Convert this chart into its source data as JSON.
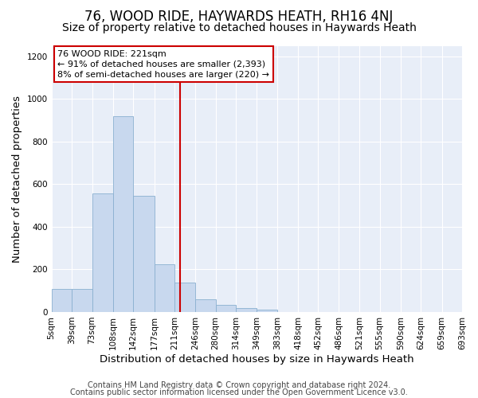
{
  "title": "76, WOOD RIDE, HAYWARDS HEATH, RH16 4NJ",
  "subtitle": "Size of property relative to detached houses in Haywards Heath",
  "xlabel": "Distribution of detached houses by size in Haywards Heath",
  "ylabel": "Number of detached properties",
  "bar_edges": [
    5,
    39,
    73,
    108,
    142,
    177,
    211,
    246,
    280,
    314,
    349,
    383,
    418,
    452,
    486,
    521,
    555,
    590,
    624,
    659,
    693
  ],
  "bar_heights": [
    110,
    110,
    557,
    920,
    545,
    225,
    137,
    60,
    35,
    20,
    10,
    0,
    0,
    0,
    0,
    0,
    0,
    0,
    0,
    0
  ],
  "bar_color": "#c8d8ee",
  "bar_edge_color": "#8ab0d0",
  "property_value": 221,
  "vline_color": "#cc0000",
  "annotation_text": "76 WOOD RIDE: 221sqm\n← 91% of detached houses are smaller (2,393)\n8% of semi-detached houses are larger (220) →",
  "annotation_box_color": "#ffffff",
  "annotation_box_edge": "#cc0000",
  "ylim": [
    0,
    1250
  ],
  "yticks": [
    0,
    200,
    400,
    600,
    800,
    1000,
    1200
  ],
  "tick_labels": [
    "5sqm",
    "39sqm",
    "73sqm",
    "108sqm",
    "142sqm",
    "177sqm",
    "211sqm",
    "246sqm",
    "280sqm",
    "314sqm",
    "349sqm",
    "383sqm",
    "418sqm",
    "452sqm",
    "486sqm",
    "521sqm",
    "555sqm",
    "590sqm",
    "624sqm",
    "659sqm",
    "693sqm"
  ],
  "footer1": "Contains HM Land Registry data © Crown copyright and database right 2024.",
  "footer2": "Contains public sector information licensed under the Open Government Licence v3.0.",
  "bg_color": "#ffffff",
  "plot_bg_color": "#e8eef8",
  "title_fontsize": 12,
  "subtitle_fontsize": 10,
  "axis_label_fontsize": 9.5,
  "tick_fontsize": 7.5,
  "footer_fontsize": 7
}
